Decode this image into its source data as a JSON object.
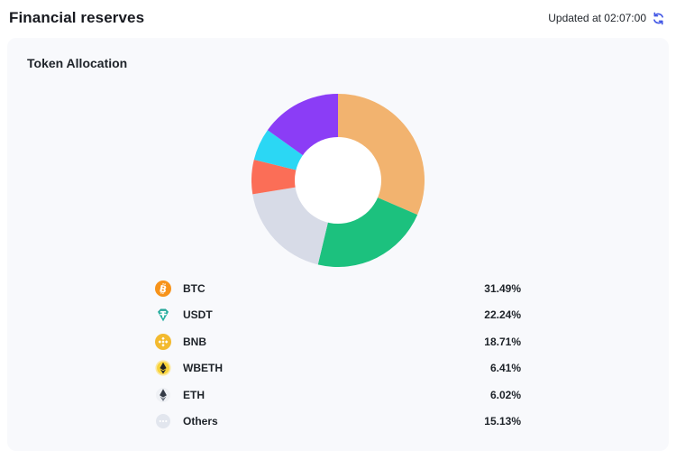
{
  "header": {
    "title": "Financial reserves",
    "updated_label": "Updated at 02:07:00",
    "refresh_icon": "refresh-icon"
  },
  "card": {
    "title": "Token Allocation"
  },
  "chart_data": {
    "type": "pie",
    "subtype": "donut",
    "title": "Token Allocation",
    "categories": [
      "BTC",
      "USDT",
      "BNB",
      "WBETH",
      "ETH",
      "Others"
    ],
    "values": [
      31.49,
      22.24,
      18.71,
      6.41,
      6.02,
      15.13
    ],
    "unit": "%",
    "segment_colors": [
      "#F2B36F",
      "#1CC17E",
      "#D7DBE7",
      "#FB6E57",
      "#2BD7F4",
      "#8B3DF6"
    ],
    "start_angle_deg": 0,
    "direction": "clockwise",
    "inner_radius_ratio": 0.5,
    "hole_color": "#FFFFFF",
    "legend_position": "bottom"
  },
  "legend": {
    "items": [
      {
        "token": "BTC",
        "percent": "31.49%",
        "icon": "btc-icon",
        "icon_color": "#F7931A"
      },
      {
        "token": "USDT",
        "percent": "22.24%",
        "icon": "usdt-icon",
        "icon_color": "#26A69A"
      },
      {
        "token": "BNB",
        "percent": "18.71%",
        "icon": "bnb-icon",
        "icon_color": "#F3BA2F"
      },
      {
        "token": "WBETH",
        "percent": "6.41%",
        "icon": "wbeth-icon",
        "icon_color": "#F8D33A"
      },
      {
        "token": "ETH",
        "percent": "6.02%",
        "icon": "eth-icon",
        "icon_color": "#343B47"
      },
      {
        "token": "Others",
        "percent": "15.13%",
        "icon": "others-icon",
        "icon_color": "#E2E6EE"
      }
    ]
  },
  "colors": {
    "accent_blue": "#4257E5",
    "card_bg": "#F8F9FC",
    "page_bg": "#FFFFFF",
    "text_dark": "#1E2329"
  }
}
